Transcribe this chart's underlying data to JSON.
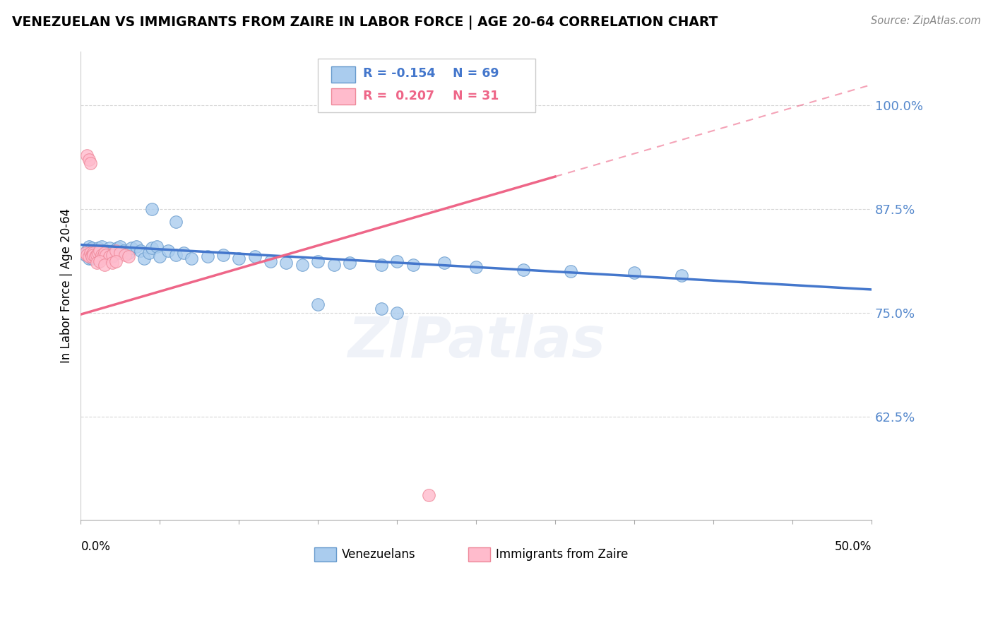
{
  "title": "VENEZUELAN VS IMMIGRANTS FROM ZAIRE IN LABOR FORCE | AGE 20-64 CORRELATION CHART",
  "source": "Source: ZipAtlas.com",
  "ylabel": "In Labor Force | Age 20-64",
  "watermark": "ZIPatlas",
  "xlim": [
    0.0,
    0.5
  ],
  "ylim": [
    0.5,
    1.065
  ],
  "ytick_vals": [
    0.625,
    0.75,
    0.875,
    1.0
  ],
  "ytick_labels": [
    "62.5%",
    "75.0%",
    "87.5%",
    "100.0%"
  ],
  "R_ven": -0.154,
  "N_ven": 69,
  "R_zaire": 0.207,
  "N_zaire": 31,
  "color_blue_fill": "#AACCEE",
  "color_blue_edge": "#6699CC",
  "color_pink_fill": "#FFBBCC",
  "color_pink_edge": "#EE8899",
  "color_blue_line": "#4477CC",
  "color_pink_line": "#EE6688",
  "grid_color": "#CCCCCC",
  "venezuelan_x": [
    0.003,
    0.004,
    0.005,
    0.005,
    0.006,
    0.006,
    0.007,
    0.007,
    0.008,
    0.008,
    0.009,
    0.009,
    0.01,
    0.01,
    0.011,
    0.011,
    0.012,
    0.013,
    0.013,
    0.014,
    0.015,
    0.015,
    0.016,
    0.017,
    0.018,
    0.019,
    0.02,
    0.021,
    0.022,
    0.023,
    0.025,
    0.027,
    0.03,
    0.032,
    0.035,
    0.038,
    0.04,
    0.043,
    0.045,
    0.048,
    0.05,
    0.055,
    0.06,
    0.065,
    0.07,
    0.08,
    0.09,
    0.1,
    0.11,
    0.12,
    0.13,
    0.14,
    0.15,
    0.16,
    0.17,
    0.19,
    0.2,
    0.21,
    0.23,
    0.25,
    0.28,
    0.31,
    0.35,
    0.38,
    0.15,
    0.19,
    0.2,
    0.045,
    0.06
  ],
  "venezuelan_y": [
    0.82,
    0.825,
    0.815,
    0.83,
    0.822,
    0.818,
    0.828,
    0.815,
    0.825,
    0.82,
    0.822,
    0.818,
    0.825,
    0.82,
    0.828,
    0.815,
    0.822,
    0.83,
    0.82,
    0.825,
    0.822,
    0.818,
    0.825,
    0.82,
    0.828,
    0.822,
    0.818,
    0.825,
    0.822,
    0.828,
    0.83,
    0.825,
    0.822,
    0.828,
    0.83,
    0.825,
    0.815,
    0.822,
    0.828,
    0.83,
    0.818,
    0.825,
    0.82,
    0.822,
    0.815,
    0.818,
    0.82,
    0.815,
    0.818,
    0.812,
    0.81,
    0.808,
    0.812,
    0.808,
    0.81,
    0.808,
    0.812,
    0.808,
    0.81,
    0.805,
    0.802,
    0.8,
    0.798,
    0.795,
    0.76,
    0.755,
    0.75,
    0.875,
    0.86
  ],
  "zaire_x": [
    0.003,
    0.004,
    0.005,
    0.006,
    0.007,
    0.007,
    0.008,
    0.008,
    0.009,
    0.01,
    0.011,
    0.012,
    0.013,
    0.014,
    0.015,
    0.016,
    0.018,
    0.02,
    0.022,
    0.025,
    0.028,
    0.03,
    0.004,
    0.005,
    0.006,
    0.01,
    0.012,
    0.015,
    0.02,
    0.022,
    0.22
  ],
  "zaire_y": [
    0.822,
    0.82,
    0.818,
    0.822,
    0.82,
    0.818,
    0.822,
    0.82,
    0.818,
    0.82,
    0.822,
    0.825,
    0.82,
    0.818,
    0.822,
    0.82,
    0.818,
    0.82,
    0.825,
    0.822,
    0.82,
    0.818,
    0.94,
    0.935,
    0.93,
    0.81,
    0.812,
    0.808,
    0.81,
    0.812,
    0.53
  ],
  "line_ven_x0": 0.0,
  "line_ven_y0": 0.832,
  "line_ven_x1": 0.5,
  "line_ven_y1": 0.778,
  "line_zaire_x0": 0.0,
  "line_zaire_y0": 0.748,
  "line_zaire_x1": 0.5,
  "line_zaire_y1": 1.025,
  "line_zaire_solid_end": 0.3
}
